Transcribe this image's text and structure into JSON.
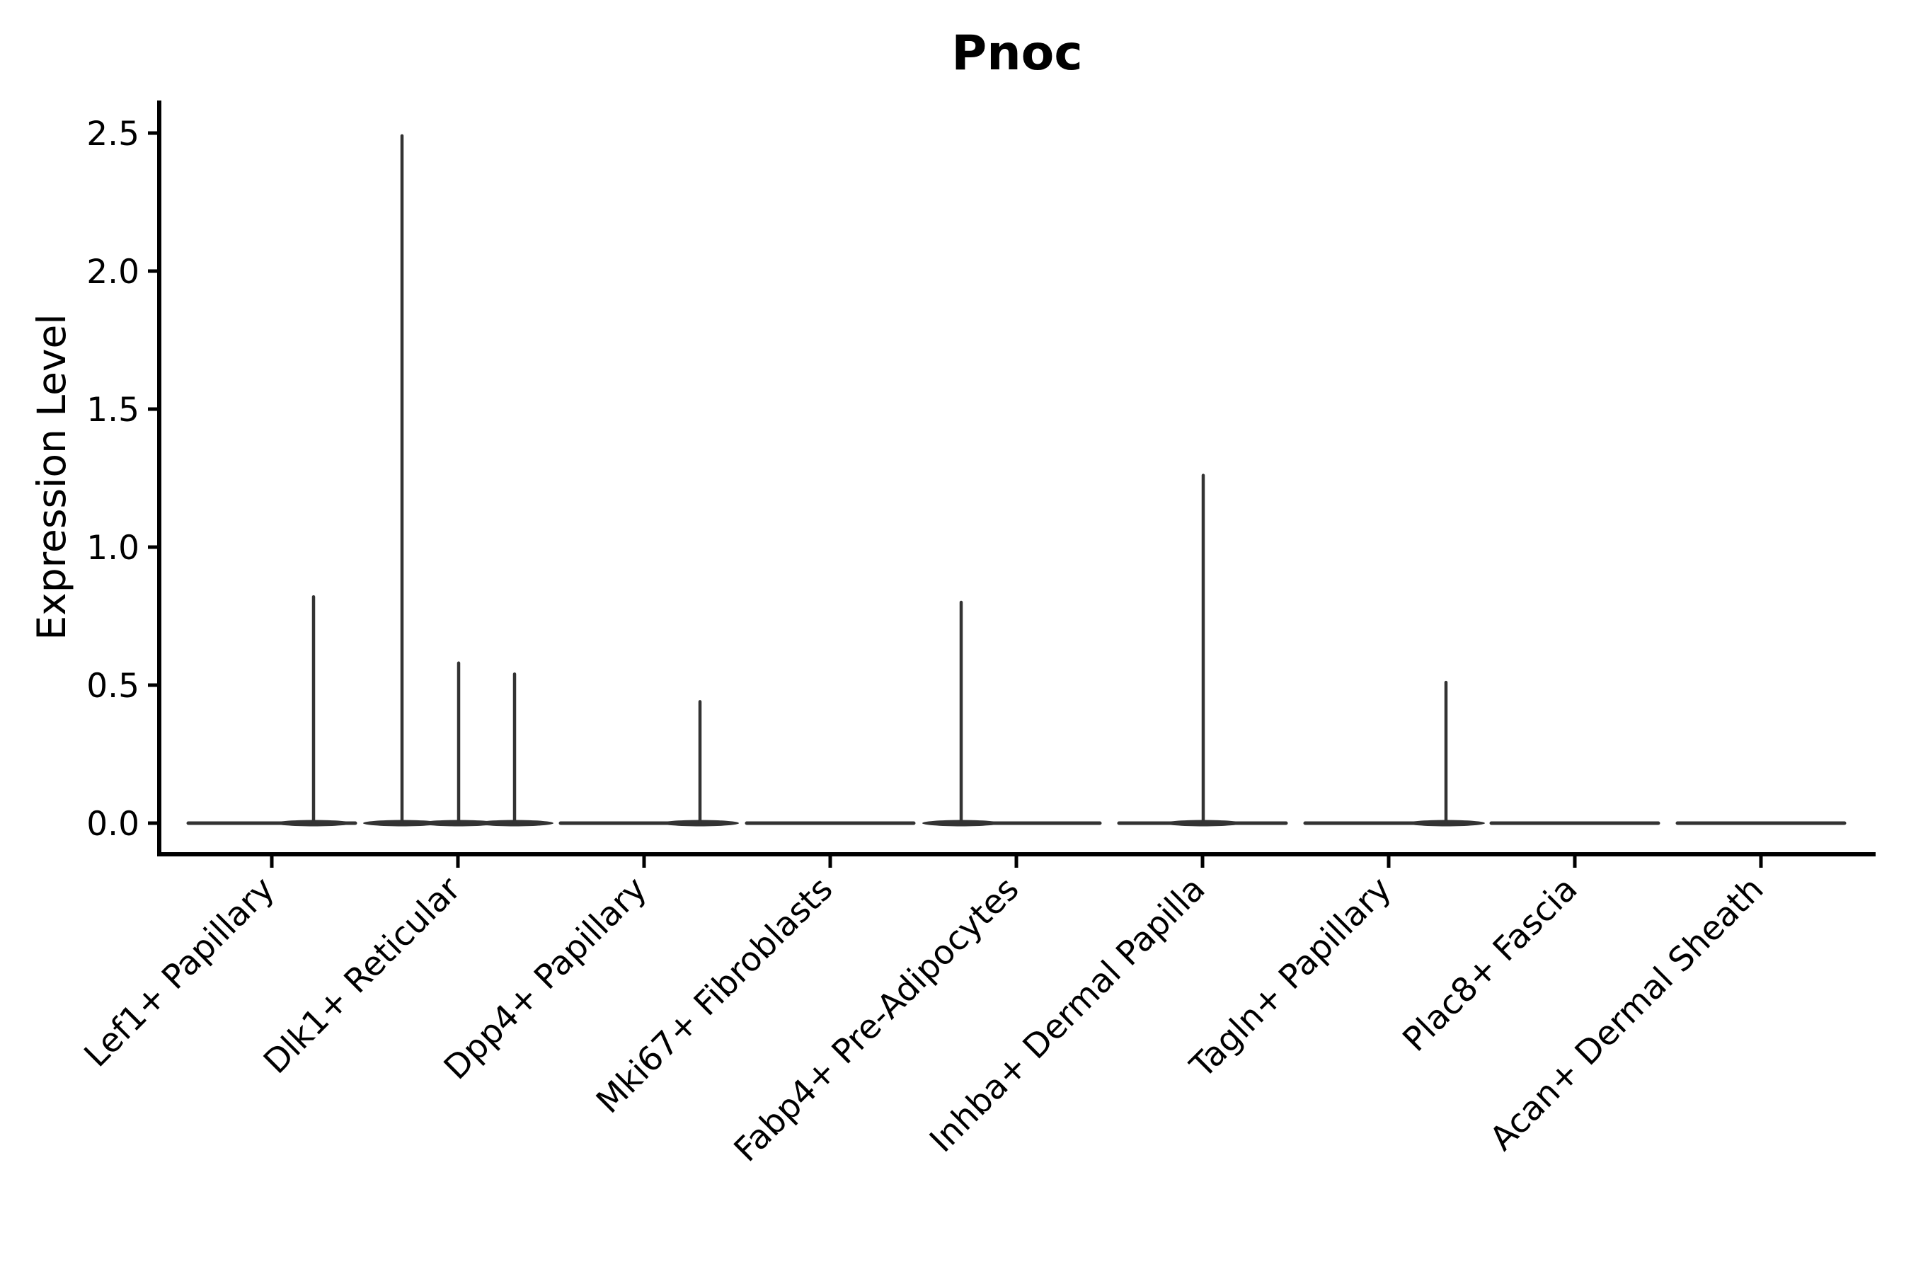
{
  "chart_data": {
    "type": "violin",
    "title": "Pnoc",
    "xlabel": "",
    "ylabel": "Expression Level",
    "categories": [
      "Lef1+ Papillary",
      "Dlk1+ Reticular",
      "Dpp4+ Papillary",
      "Mki67+ Fibroblasts",
      "Fabp4+ Pre-Adipocytes",
      "Inhba+ Dermal Papilla",
      "Tagln+ Papillary",
      "Plac8+ Fascia",
      "Acan+ Dermal Sheath"
    ],
    "y_ticks": [
      0.0,
      0.5,
      1.0,
      1.5,
      2.0,
      2.5
    ],
    "ylim": [
      -0.11,
      2.62
    ],
    "grid": false,
    "legend": false,
    "violins": [
      {
        "category": "Lef1+ Papillary",
        "baseline_value": 0,
        "spikes": [
          {
            "dx": 59,
            "max": 0.82
          }
        ]
      },
      {
        "category": "Dlk1+ Reticular",
        "baseline_value": 0,
        "spikes": [
          {
            "dx": -79,
            "max": 2.49
          },
          {
            "dx": 1,
            "max": 0.58
          },
          {
            "dx": 80,
            "max": 0.54
          }
        ]
      },
      {
        "category": "Dpp4+ Papillary",
        "baseline_value": 0,
        "spikes": [
          {
            "dx": 79,
            "max": 0.44
          }
        ]
      },
      {
        "category": "Mki67+ Fibroblasts",
        "baseline_value": 0,
        "spikes": []
      },
      {
        "category": "Fabp4+ Pre-Adipocytes",
        "baseline_value": 0,
        "spikes": [
          {
            "dx": -78,
            "max": 0.8
          }
        ]
      },
      {
        "category": "Inhba+ Dermal Papilla",
        "baseline_value": 0,
        "spikes": [
          {
            "dx": 1,
            "max": 1.26
          }
        ]
      },
      {
        "category": "Tagln+ Papillary",
        "baseline_value": 0,
        "spikes": [
          {
            "dx": 81,
            "max": 0.51
          }
        ]
      },
      {
        "category": "Plac8+ Fascia",
        "baseline_value": 0,
        "spikes": []
      },
      {
        "category": "Acan+ Dermal Sheath",
        "baseline_value": 0,
        "spikes": []
      }
    ],
    "colors": {
      "violin_line": "#333333",
      "axis": "#000000",
      "text": "#000000",
      "background": "#ffffff"
    }
  }
}
